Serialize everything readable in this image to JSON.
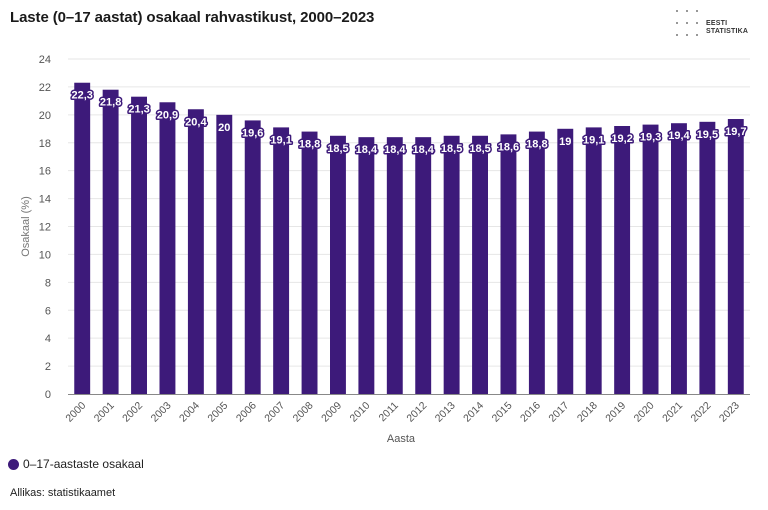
{
  "header": {
    "title": "Laste (0–17 aastat) osakaal rahvastikust, 2000–2023",
    "logo_line1": "EESTI",
    "logo_line2": "STATISTIKA"
  },
  "legend": {
    "label": "0–17-aastaste osakaal"
  },
  "footer": {
    "source": "Allikas: statistikaamet"
  },
  "colors": {
    "bar": "#3d1a7a",
    "grid": "#e6e6e6",
    "axis_text": "#555555"
  },
  "chart_data": {
    "type": "bar",
    "title": "Laste (0–17 aastat) osakaal rahvastikust, 2000–2023",
    "xlabel": "Aasta",
    "ylabel": "Osakaal (%)",
    "ylim": [
      0,
      24
    ],
    "yticks": [
      0,
      2,
      4,
      6,
      8,
      10,
      12,
      14,
      16,
      18,
      20,
      22,
      24
    ],
    "grid": true,
    "legend_position": "bottom-left",
    "categories": [
      "2000",
      "2001",
      "2002",
      "2003",
      "2004",
      "2005",
      "2006",
      "2007",
      "2008",
      "2009",
      "2010",
      "2011",
      "2012",
      "2013",
      "2014",
      "2015",
      "2016",
      "2017",
      "2018",
      "2019",
      "2020",
      "2021",
      "2022",
      "2023"
    ],
    "series": [
      {
        "name": "0–17-aastaste osakaal",
        "values": [
          22.3,
          21.8,
          21.3,
          20.9,
          20.4,
          20,
          19.6,
          19.1,
          18.8,
          18.5,
          18.4,
          18.4,
          18.4,
          18.5,
          18.5,
          18.6,
          18.8,
          19,
          19.1,
          19.2,
          19.3,
          19.4,
          19.5,
          19.7
        ],
        "labels": [
          "22,3",
          "21,8",
          "21,3",
          "20,9",
          "20,4",
          "20",
          "19,6",
          "19,1",
          "18,8",
          "18,5",
          "18,4",
          "18,4",
          "18,4",
          "18,5",
          "18,5",
          "18,6",
          "18,8",
          "19",
          "19,1",
          "19,2",
          "19,3",
          "19,4",
          "19,5",
          "19,7"
        ]
      }
    ]
  }
}
